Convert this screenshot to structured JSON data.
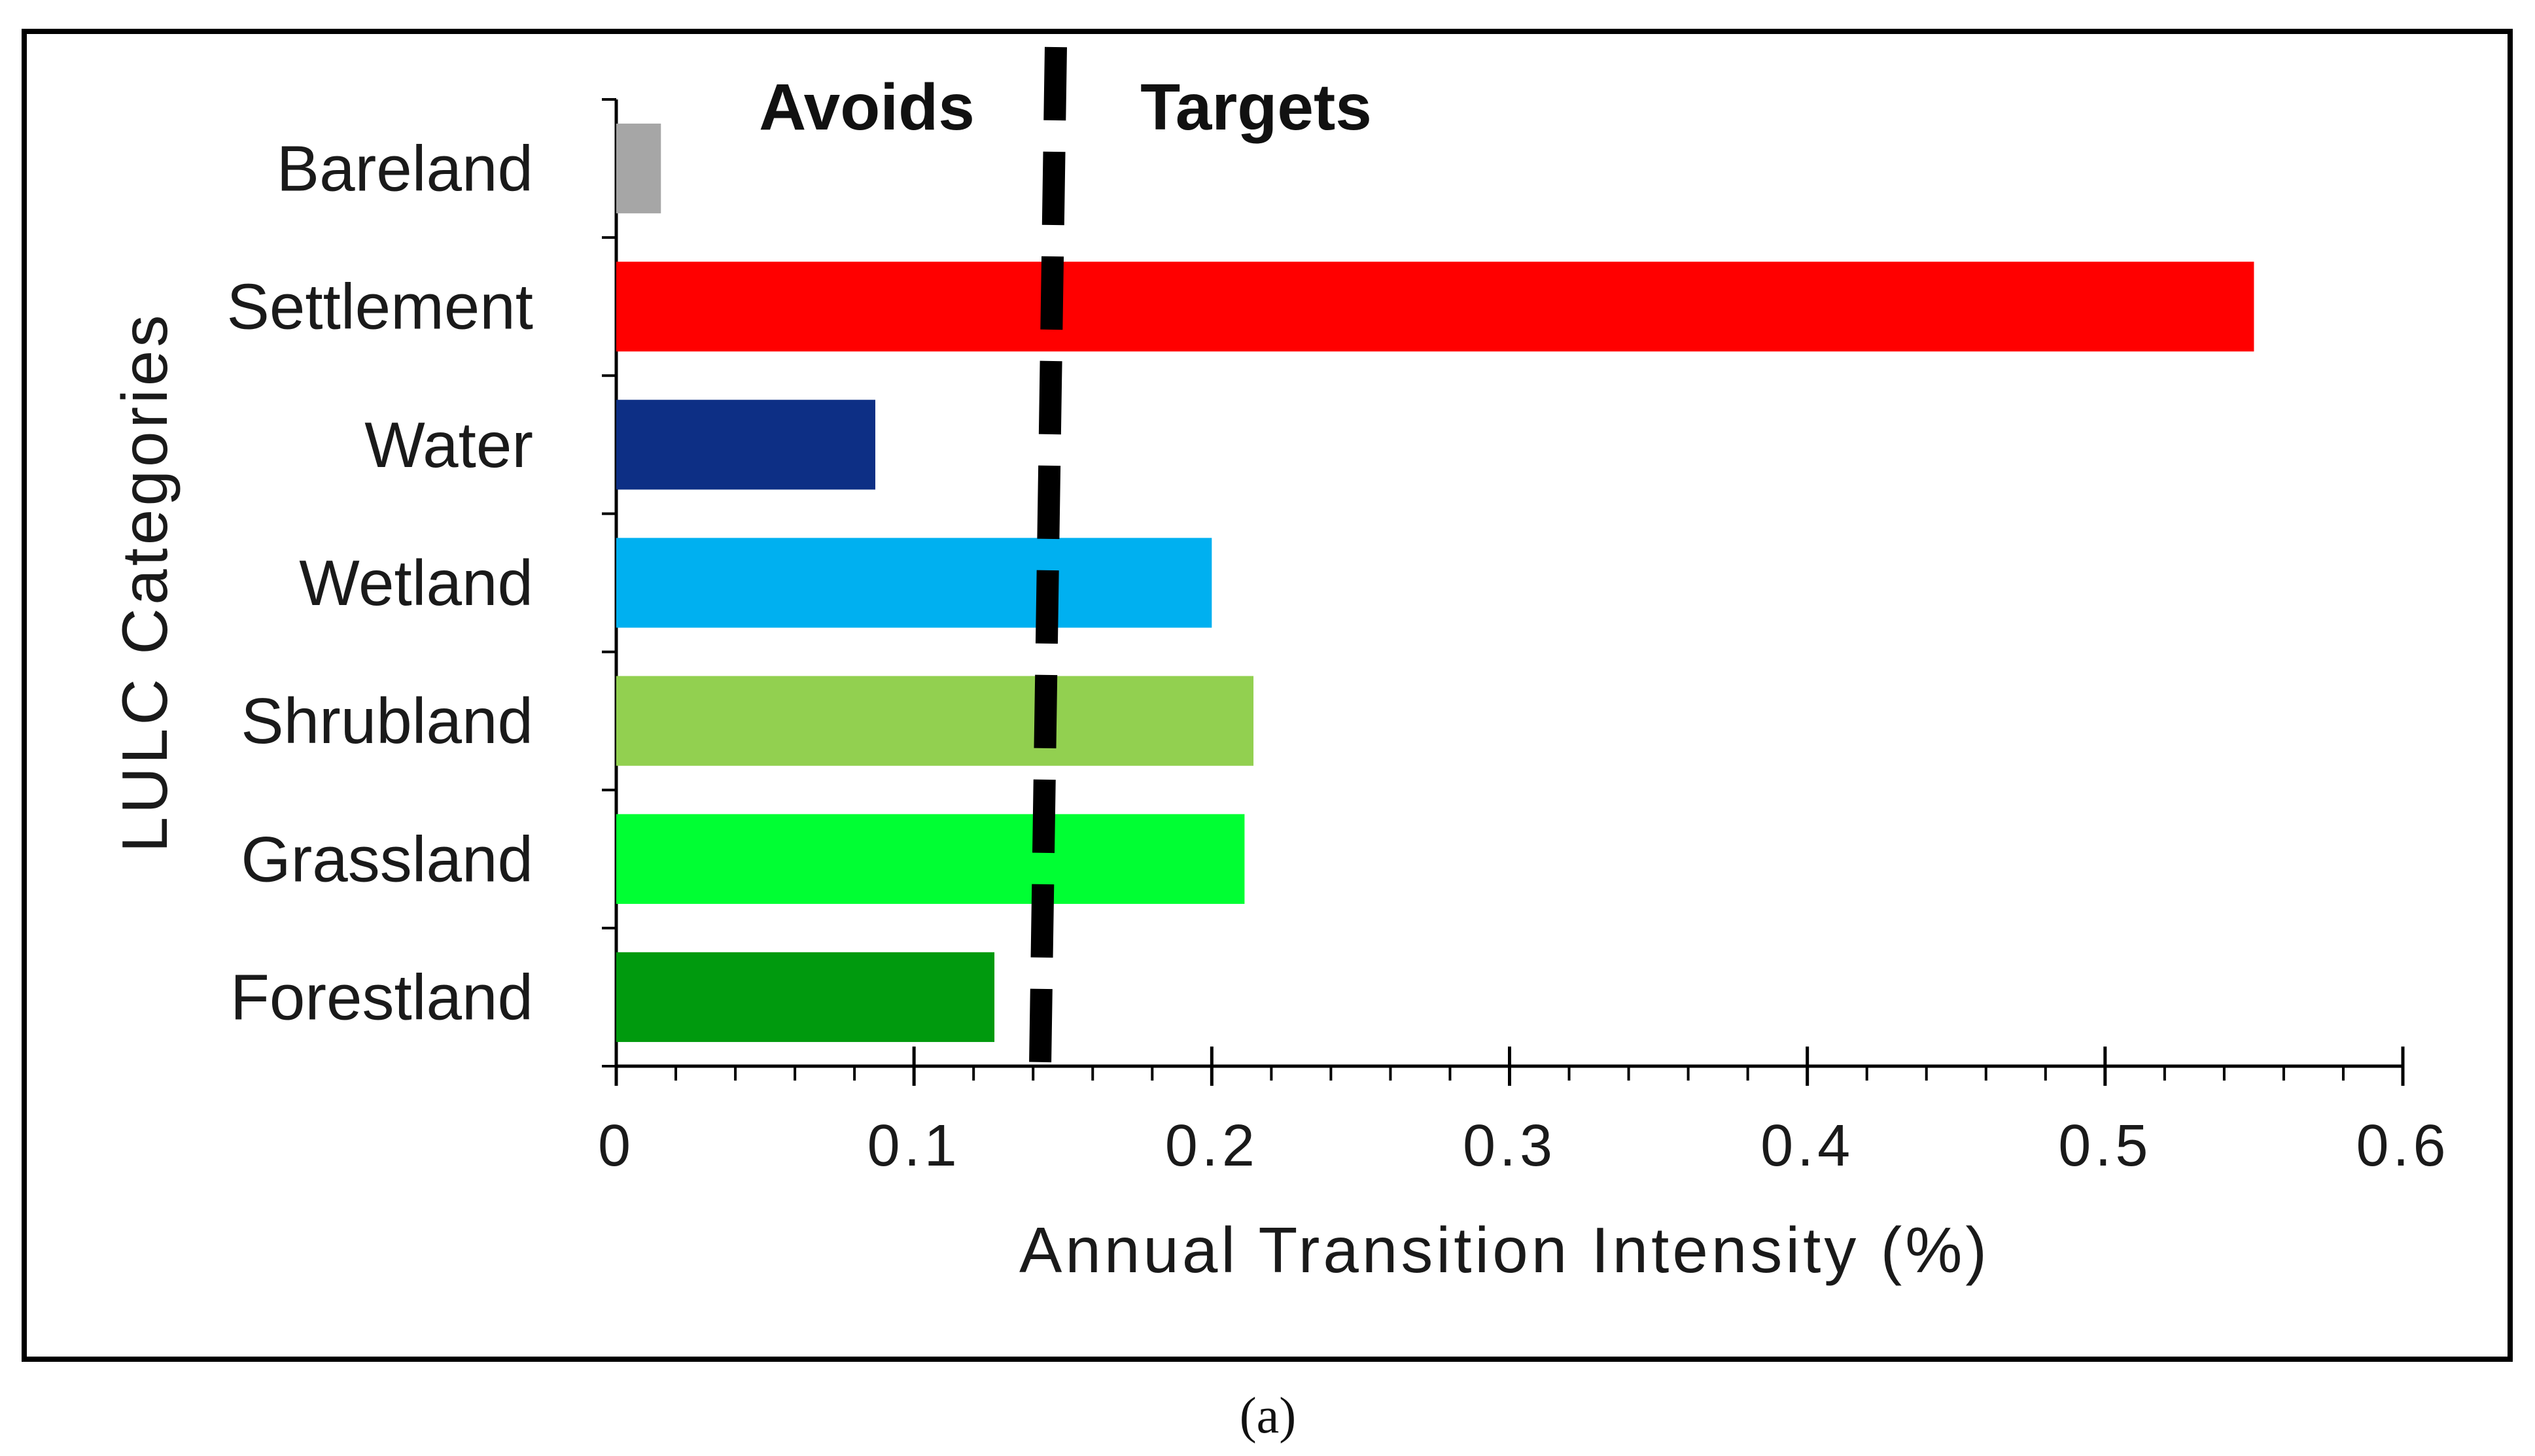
{
  "chart_data": {
    "type": "bar",
    "orientation": "horizontal",
    "categories": [
      "Bareland",
      "Settlement",
      "Water",
      "Wetland",
      "Shrubland",
      "Grassland",
      "Forestland"
    ],
    "values": [
      0.015,
      0.55,
      0.087,
      0.2,
      0.214,
      0.211,
      0.127
    ],
    "colors": [
      "#a6a6a6",
      "#ff0000",
      "#0d2f85",
      "#00b0f0",
      "#92d050",
      "#00ff33",
      "#009a0e"
    ],
    "xlabel": "Annual Transition Intensity (%)",
    "ylabel": "LULC Categories",
    "xlim": [
      0,
      0.6
    ],
    "xticks": [
      "0",
      "0.1",
      "0.2",
      "0.3",
      "0.4",
      "0.5",
      "0.6"
    ],
    "xtick_values": [
      0,
      0.1,
      0.2,
      0.3,
      0.4,
      0.5,
      0.6
    ],
    "uniform_intensity": 0.145,
    "annotations": {
      "left": "Avoids",
      "right": "Targets"
    },
    "grid": false
  },
  "caption": "(a)"
}
